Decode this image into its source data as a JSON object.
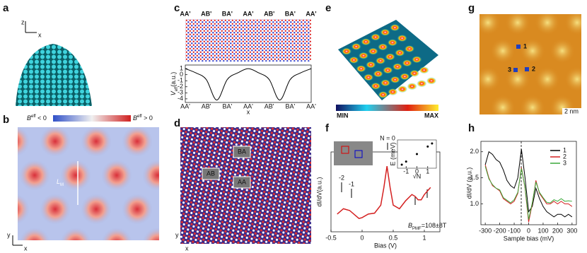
{
  "panels": {
    "labels": [
      "a",
      "b",
      "c",
      "d",
      "e",
      "f",
      "g",
      "h"
    ],
    "a": {
      "axes": [
        "z",
        "x"
      ]
    },
    "b": {
      "colorbar": [
        {
          "symbol": "B",
          "sup": "eff",
          "rest": " < 0"
        },
        {
          "symbol": "B",
          "sup": "eff",
          "rest": " > 0"
        }
      ],
      "length": {
        "symbol": "L",
        "sub": "M"
      },
      "axes": [
        "y",
        "x"
      ]
    },
    "c": {
      "stacking": [
        "AA'",
        "AB'",
        "BA'",
        "AA'",
        "AB'",
        "BA'",
        "AA'"
      ]
    },
    "d": {
      "regions": [
        "BA",
        "AB",
        "AA"
      ],
      "axes": [
        "y",
        "x"
      ]
    },
    "e": {
      "colorbar": [
        "MIN",
        "MAX"
      ]
    },
    "f": {
      "annotations": [
        "N = 0",
        "-1",
        "-2"
      ],
      "field": {
        "symbol": "B",
        "sub": "PMF",
        "rest": "=108±8T"
      }
    },
    "g": {
      "sites": [
        "1",
        "2",
        "3"
      ],
      "scale_bar": "2 nm"
    }
  },
  "chart_data": [
    {
      "type": "line",
      "categories": [
        "AA'",
        null,
        "AB'",
        null,
        "BA'",
        null,
        "AA'",
        null,
        "AB'",
        null,
        "BA'",
        null,
        "AA'"
      ],
      "series": [
        {
          "color": "#000000",
          "values": [
            1,
            0.3,
            -0.8,
            -4.2,
            -0.8,
            0.3,
            1,
            0.3,
            -0.8,
            -4.2,
            -0.8,
            0.3,
            1
          ]
        }
      ],
      "ylim": [
        -4.6,
        1.6
      ],
      "yticks": [
        1,
        0,
        -1,
        -2,
        -3,
        -4
      ],
      "y_label": {
        "symbol": "V",
        "sub": "eff",
        "rest": "(a.u.)"
      },
      "x_label": "x"
    },
    {
      "type": "line",
      "x": [
        -0.4,
        -0.3,
        -0.2,
        -0.1,
        -0.05,
        0,
        0.1,
        0.2,
        0.3,
        0.35,
        0.4,
        0.45,
        0.5,
        0.6,
        0.7,
        0.8,
        0.85,
        0.9,
        0.95,
        1.0,
        1.05,
        1.1
      ],
      "series": [
        {
          "color": "#d42020",
          "values": [
            2,
            2.6,
            2.4,
            1.8,
            1.5,
            1.6,
            2,
            2.1,
            3,
            5,
            7.4,
            5,
            3,
            2.6,
            3.5,
            4.2,
            4,
            3.6,
            3.6,
            4.2,
            4.6,
            5
          ]
        }
      ],
      "xlim": [
        -0.5,
        1.25
      ],
      "xticks": [
        -0.5,
        0,
        0.5,
        1
      ],
      "ylim": [
        0,
        9
      ],
      "x_label": "Bias (V)",
      "y_label": "dI/dV(a.u.)"
    },
    {
      "type": "scatter",
      "x": [
        -1.4,
        -1,
        0,
        1,
        1.4
      ],
      "values": [
        -45,
        -32,
        0,
        32,
        45
      ],
      "color": "#000000",
      "xlim": [
        -1.8,
        1.8
      ],
      "xticks": [
        -1,
        0,
        1
      ],
      "ylim": [
        -60,
        60
      ],
      "x_label": "√N",
      "y_label": "E (meV)"
    },
    {
      "type": "line",
      "x": [
        -300,
        -275,
        -250,
        -225,
        -200,
        -175,
        -150,
        -125,
        -100,
        -75,
        -50,
        -25,
        0,
        25,
        50,
        75,
        100,
        125,
        150,
        175,
        200,
        225,
        250,
        275,
        300
      ],
      "series": [
        {
          "name": "1",
          "color": "#000000",
          "values": [
            1.75,
            2.0,
            1.95,
            1.85,
            1.8,
            1.65,
            1.45,
            1.35,
            1.3,
            1.5,
            2.05,
            1.5,
            0.85,
            0.95,
            1.3,
            1.1,
            0.95,
            0.85,
            0.8,
            0.75,
            0.8,
            0.8,
            0.75,
            0.8,
            0.75
          ]
        },
        {
          "name": "2",
          "color": "#d42020",
          "values": [
            1.75,
            1.5,
            1.35,
            1.3,
            1.25,
            1.1,
            1.05,
            1.0,
            1.05,
            1.2,
            1.7,
            1.3,
            0.65,
            1.0,
            1.45,
            1.2,
            1.1,
            1.0,
            1.0,
            1.05,
            1.0,
            1.05,
            1.0,
            1.0,
            0.95
          ]
        },
        {
          "name": "3",
          "color": "#3aa83a",
          "values": [
            1.72,
            1.48,
            1.37,
            1.3,
            1.27,
            1.12,
            1.07,
            1.02,
            1.08,
            1.22,
            1.68,
            1.32,
            0.7,
            1.02,
            1.42,
            1.22,
            1.12,
            1.03,
            1.02,
            1.08,
            1.05,
            1.1,
            1.05,
            1.06,
            1.05
          ]
        }
      ],
      "xlim": [
        -330,
        330
      ],
      "xticks": [
        -300,
        -200,
        -100,
        0,
        100,
        200,
        300
      ],
      "ylim": [
        0.6,
        2.2
      ],
      "yticks": [
        {
          "value": 1,
          "label": "1.0"
        },
        {
          "value": 1.5,
          "label": "1.5"
        },
        {
          "value": 2,
          "label": "2.0"
        }
      ],
      "x_label": "Sample bias (mV)",
      "y_label": "dI/dV (a.u.)"
    }
  ]
}
